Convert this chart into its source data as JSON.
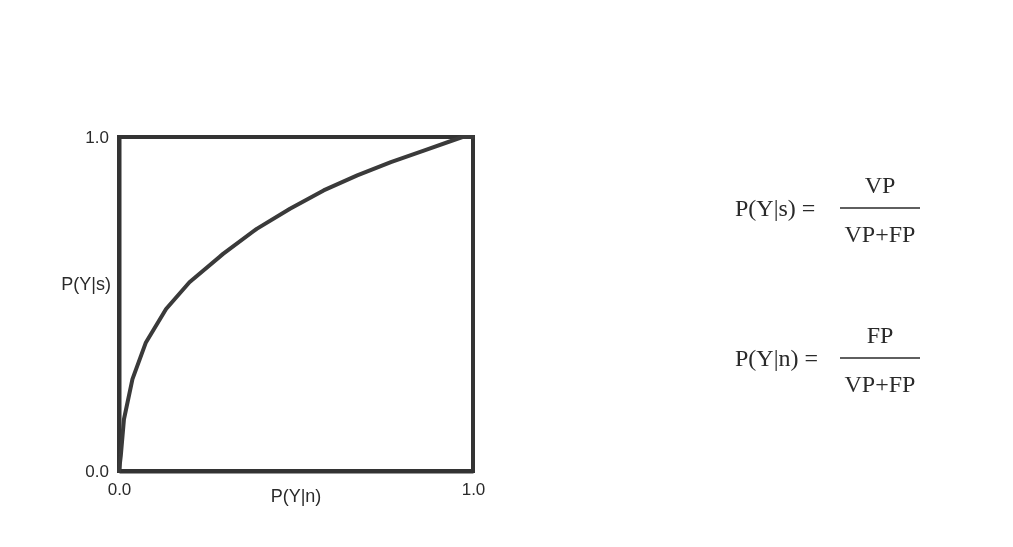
{
  "chart_data": {
    "type": "line",
    "xlabel": "P(Y|n)",
    "ylabel": "P(Y|s)",
    "x": [
      0,
      0.005,
      0.014,
      0.038,
      0.076,
      0.133,
      0.199,
      0.294,
      0.389,
      0.483,
      0.578,
      0.673,
      0.768,
      0.863,
      0.97,
      1
    ],
    "series": [
      {
        "color": "#3a3a3a",
        "values": [
          0,
          0.045,
          0.155,
          0.275,
          0.385,
          0.485,
          0.565,
          0.65,
          0.725,
          0.785,
          0.84,
          0.885,
          0.925,
          0.96,
          1.0,
          1
        ]
      }
    ],
    "xlim": [
      0,
      1
    ],
    "ylim": [
      0,
      1
    ],
    "xticks": [
      {
        "value": 0,
        "label": "0.0"
      },
      {
        "value": 1,
        "label": "1.0"
      }
    ],
    "yticks": [
      {
        "value": 0,
        "label": "0.0"
      },
      {
        "value": 1,
        "label": "1.0"
      }
    ],
    "marker": "none",
    "line_style": "solid",
    "annotations": [
      "P(Y|s) =",
      "VP",
      "VP+FP",
      "P(Y|n) =",
      "FP",
      "VP+FP"
    ]
  }
}
